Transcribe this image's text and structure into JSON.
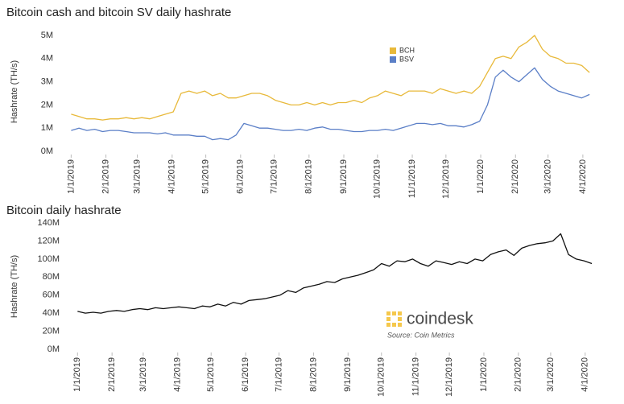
{
  "chart_data": [
    {
      "type": "line",
      "title": "Bitcoin cash and bitcoin SV daily hashrate",
      "y_label": "Hashrate (TH/s)",
      "x": [
        "1/1/2019",
        "1/8/2019",
        "1/15/2019",
        "1/22/2019",
        "1/29/2019",
        "2/5/2019",
        "2/12/2019",
        "2/19/2019",
        "2/26/2019",
        "3/5/2019",
        "3/12/2019",
        "3/19/2019",
        "3/26/2019",
        "4/2/2019",
        "4/9/2019",
        "4/16/2019",
        "4/23/2019",
        "4/30/2019",
        "5/7/2019",
        "5/14/2019",
        "5/21/2019",
        "5/28/2019",
        "6/4/2019",
        "6/11/2019",
        "6/18/2019",
        "6/25/2019",
        "7/2/2019",
        "7/9/2019",
        "7/16/2019",
        "7/23/2019",
        "7/30/2019",
        "8/6/2019",
        "8/13/2019",
        "8/20/2019",
        "8/27/2019",
        "9/3/2019",
        "9/10/2019",
        "9/17/2019",
        "9/24/2019",
        "10/1/2019",
        "10/8/2019",
        "10/15/2019",
        "10/22/2019",
        "10/29/2019",
        "11/5/2019",
        "11/12/2019",
        "11/19/2019",
        "11/26/2019",
        "12/3/2019",
        "12/10/2019",
        "12/17/2019",
        "12/24/2019",
        "12/31/2019",
        "1/7/2020",
        "1/14/2020",
        "1/21/2020",
        "1/28/2020",
        "2/4/2020",
        "2/11/2020",
        "2/18/2020",
        "2/25/2020",
        "3/3/2020",
        "3/10/2020",
        "3/17/2020",
        "3/24/2020",
        "3/31/2020",
        "4/7/2020"
      ],
      "series": [
        {
          "name": "BCH",
          "color": "#e8b93a",
          "values": [
            1600000.0,
            1500000.0,
            1400000.0,
            1400000.0,
            1350000.0,
            1400000.0,
            1400000.0,
            1450000.0,
            1400000.0,
            1450000.0,
            1400000.0,
            1500000.0,
            1600000.0,
            1700000.0,
            2500000.0,
            2600000.0,
            2500000.0,
            2600000.0,
            2400000.0,
            2500000.0,
            2300000.0,
            2300000.0,
            2400000.0,
            2500000.0,
            2500000.0,
            2400000.0,
            2200000.0,
            2100000.0,
            2000000.0,
            2000000.0,
            2100000.0,
            2000000.0,
            2100000.0,
            2000000.0,
            2100000.0,
            2100000.0,
            2200000.0,
            2100000.0,
            2300000.0,
            2400000.0,
            2600000.0,
            2500000.0,
            2400000.0,
            2600000.0,
            2600000.0,
            2600000.0,
            2500000.0,
            2700000.0,
            2600000.0,
            2500000.0,
            2600000.0,
            2500000.0,
            2800000.0,
            3400000.0,
            4000000.0,
            4100000.0,
            4000000.0,
            4500000.0,
            4700000.0,
            5000000.0,
            4400000.0,
            4100000.0,
            4000000.0,
            3800000.0,
            3800000.0,
            3700000.0,
            3400000.0
          ]
        },
        {
          "name": "BSV",
          "color": "#5b7fc7",
          "values": [
            900000.0,
            1000000.0,
            900000.0,
            950000.0,
            850000.0,
            900000.0,
            900000.0,
            850000.0,
            800000.0,
            800000.0,
            800000.0,
            750000.0,
            800000.0,
            700000.0,
            700000.0,
            700000.0,
            650000.0,
            650000.0,
            500000.0,
            550000.0,
            500000.0,
            700000.0,
            1200000.0,
            1100000.0,
            1000000.0,
            1000000.0,
            950000.0,
            900000.0,
            900000.0,
            950000.0,
            900000.0,
            1000000.0,
            1050000.0,
            950000.0,
            950000.0,
            900000.0,
            850000.0,
            850000.0,
            900000.0,
            900000.0,
            950000.0,
            900000.0,
            1000000.0,
            1100000.0,
            1200000.0,
            1200000.0,
            1150000.0,
            1200000.0,
            1100000.0,
            1100000.0,
            1050000.0,
            1150000.0,
            1300000.0,
            2000000.0,
            3200000.0,
            3500000.0,
            3200000.0,
            3000000.0,
            3300000.0,
            3600000.0,
            3100000.0,
            2800000.0,
            2600000.0,
            2500000.0,
            2400000.0,
            2300000.0,
            2450000.0
          ]
        }
      ],
      "xlim": [
        "12/26/2018",
        "4/14/2020"
      ],
      "xticks": [
        "1/1/2019",
        "2/1/2019",
        "3/1/2019",
        "4/1/2019",
        "5/1/2019",
        "6/1/2019",
        "7/1/2019",
        "8/1/2019",
        "9/1/2019",
        "10/1/2019",
        "11/1/2019",
        "12/1/2019",
        "1/1/2020",
        "2/1/2020",
        "3/1/2020",
        "4/1/2020"
      ],
      "ylim": [
        0,
        5200000
      ],
      "yticks": [
        {
          "value": 0,
          "label": "0M"
        },
        {
          "value": 1000000,
          "label": "1M"
        },
        {
          "value": 2000000,
          "label": "2M"
        },
        {
          "value": 3000000,
          "label": "3M"
        },
        {
          "value": 4000000,
          "label": "4M"
        },
        {
          "value": 5000000,
          "label": "5M"
        }
      ],
      "grid": false,
      "legend": "top"
    },
    {
      "type": "line",
      "title": "Bitcoin daily hashrate",
      "y_label": "Hashrate (TH/s)",
      "x": [
        "1/1/2019",
        "1/8/2019",
        "1/15/2019",
        "1/22/2019",
        "1/29/2019",
        "2/5/2019",
        "2/12/2019",
        "2/19/2019",
        "2/26/2019",
        "3/5/2019",
        "3/12/2019",
        "3/19/2019",
        "3/26/2019",
        "4/2/2019",
        "4/9/2019",
        "4/16/2019",
        "4/23/2019",
        "4/30/2019",
        "5/7/2019",
        "5/14/2019",
        "5/21/2019",
        "5/28/2019",
        "6/4/2019",
        "6/11/2019",
        "6/18/2019",
        "6/25/2019",
        "7/2/2019",
        "7/9/2019",
        "7/16/2019",
        "7/23/2019",
        "7/30/2019",
        "8/6/2019",
        "8/13/2019",
        "8/20/2019",
        "8/27/2019",
        "9/3/2019",
        "9/10/2019",
        "9/17/2019",
        "9/24/2019",
        "10/1/2019",
        "10/8/2019",
        "10/15/2019",
        "10/22/2019",
        "10/29/2019",
        "11/5/2019",
        "11/12/2019",
        "11/19/2019",
        "11/26/2019",
        "12/3/2019",
        "12/10/2019",
        "12/17/2019",
        "12/24/2019",
        "12/31/2019",
        "1/7/2020",
        "1/14/2020",
        "1/21/2020",
        "1/28/2020",
        "2/4/2020",
        "2/11/2020",
        "2/18/2020",
        "2/25/2020",
        "3/3/2020",
        "3/10/2020",
        "3/17/2020",
        "3/24/2020",
        "3/31/2020",
        "4/7/2020"
      ],
      "series": [
        {
          "color": "#111111",
          "values": [
            42000000.0,
            40000000.0,
            41000000.0,
            40000000.0,
            42000000.0,
            43000000.0,
            42000000.0,
            44000000.0,
            45000000.0,
            44000000.0,
            46000000.0,
            45000000.0,
            46000000.0,
            47000000.0,
            46000000.0,
            45000000.0,
            48000000.0,
            47000000.0,
            50000000.0,
            48000000.0,
            52000000.0,
            50000000.0,
            54000000.0,
            55000000.0,
            56000000.0,
            58000000.0,
            60000000.0,
            65000000.0,
            63000000.0,
            68000000.0,
            70000000.0,
            72000000.0,
            75000000.0,
            74000000.0,
            78000000.0,
            80000000.0,
            82000000.0,
            85000000.0,
            88000000.0,
            95000000.0,
            92000000.0,
            98000000.0,
            97000000.0,
            100000000.0,
            95000000.0,
            92000000.0,
            98000000.0,
            96000000.0,
            94000000.0,
            97000000.0,
            95000000.0,
            100000000.0,
            98000000.0,
            105000000.0,
            108000000.0,
            110000000.0,
            104000000.0,
            112000000.0,
            115000000.0,
            117000000.0,
            118000000.0,
            120000000.0,
            128000000.0,
            105000000.0,
            100000000.0,
            98000000.0,
            95000000.0
          ]
        }
      ],
      "xlim": [
        "12/26/2018",
        "4/12/2020"
      ],
      "xticks": [
        "1/1/2019",
        "2/1/2019",
        "3/1/2019",
        "4/1/2019",
        "5/1/2019",
        "6/1/2019",
        "7/1/2019",
        "8/1/2019",
        "9/1/2019",
        "10/1/2019",
        "11/1/2019",
        "12/1/2019",
        "1/1/2020",
        "2/1/2020",
        "3/1/2020",
        "4/1/2020"
      ],
      "ylim": [
        0,
        140000000
      ],
      "yticks": [
        {
          "value": 0,
          "label": "0M"
        },
        {
          "value": 20000000,
          "label": "20M"
        },
        {
          "value": 40000000,
          "label": "40M"
        },
        {
          "value": 60000000,
          "label": "60M"
        },
        {
          "value": 80000000,
          "label": "80M"
        },
        {
          "value": 100000000,
          "label": "100M"
        },
        {
          "value": 120000000,
          "label": "120M"
        },
        {
          "value": 140000000,
          "label": "140M"
        }
      ],
      "grid": false,
      "watermark": "coindesk",
      "source": "Source: Coin Metrics"
    }
  ]
}
